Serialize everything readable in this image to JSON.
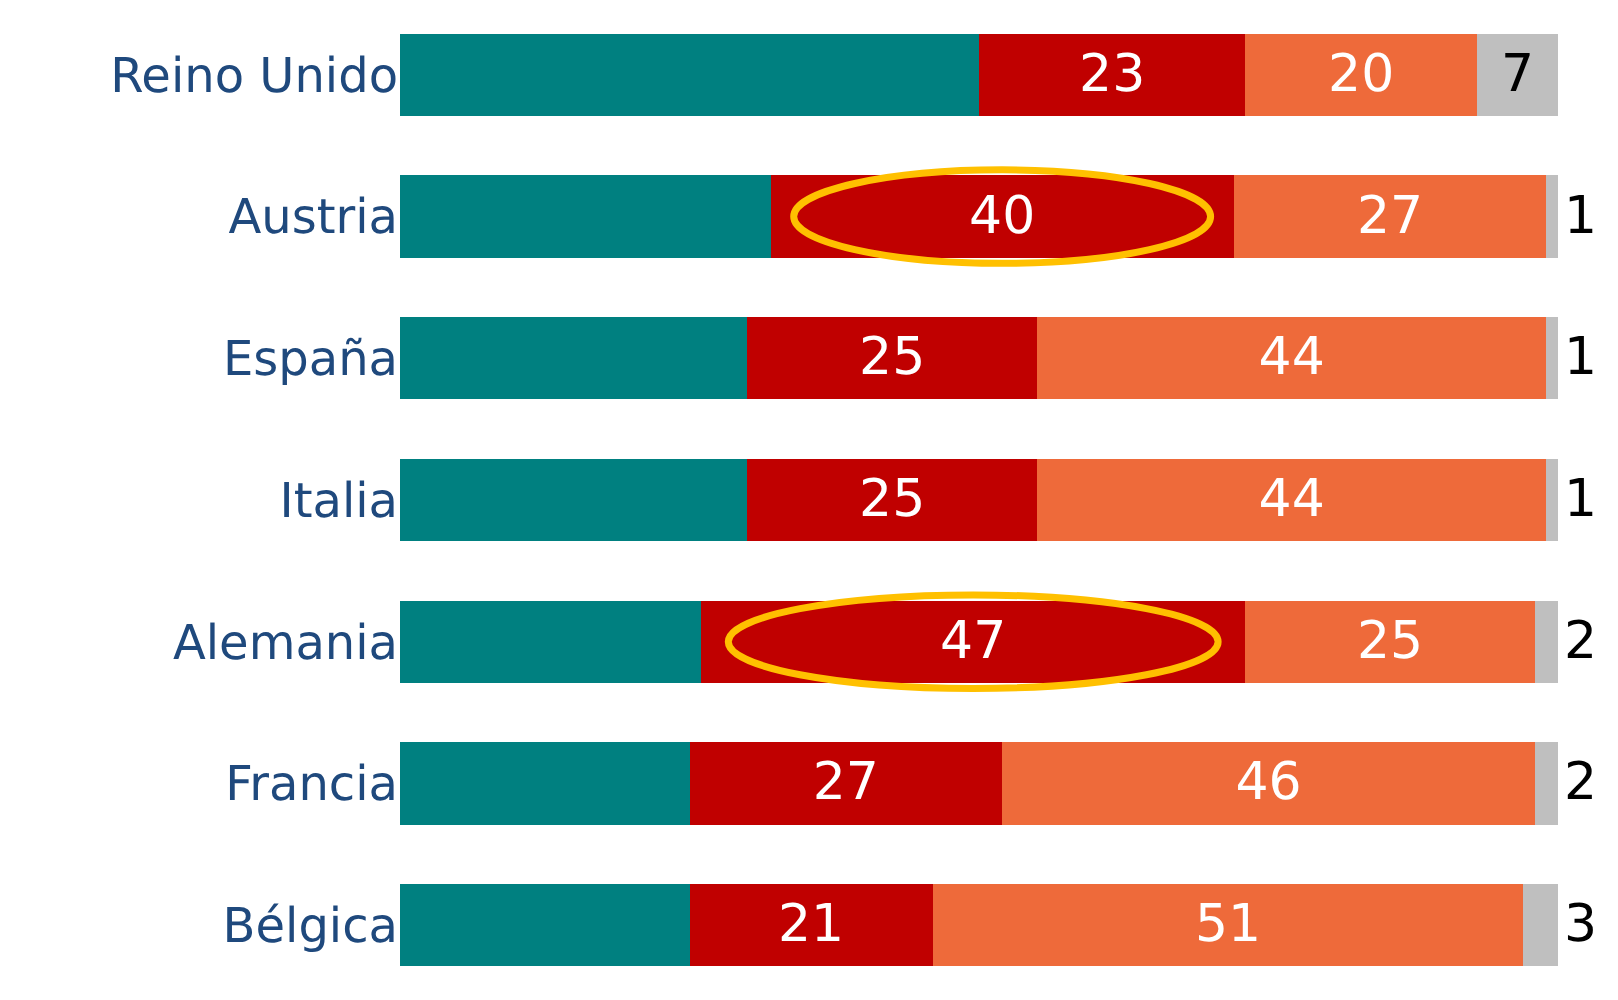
{
  "chart_data": {
    "type": "bar",
    "orientation": "horizontal",
    "stacked": true,
    "categories": [
      "Reino Unido",
      "Austria",
      "España",
      "Italia",
      "Alemania",
      "Francia",
      "Bélgica"
    ],
    "series": [
      {
        "color": "#008080",
        "values": [
          50,
          32,
          30,
          30,
          26,
          25,
          25
        ],
        "value_labels": [
          null,
          null,
          null,
          null,
          null,
          null,
          null
        ]
      },
      {
        "color": "#c00000",
        "values": [
          23,
          40,
          25,
          25,
          47,
          27,
          21
        ],
        "value_labels": [
          "23",
          "40",
          "25",
          "25",
          "47",
          "27",
          "21"
        ]
      },
      {
        "color": "#ee6a3a",
        "values": [
          20,
          27,
          44,
          44,
          25,
          46,
          51
        ],
        "value_labels": [
          "20",
          "27",
          "44",
          "44",
          "25",
          "46",
          "51"
        ]
      },
      {
        "color": "#bfbfbf",
        "values": [
          7,
          1,
          1,
          1,
          2,
          2,
          3
        ],
        "value_labels": [
          "7",
          "1",
          "1",
          "1",
          "2",
          "2",
          "3"
        ]
      }
    ],
    "xlim": [
      0,
      100
    ],
    "tick_labels": "y"
  }
}
